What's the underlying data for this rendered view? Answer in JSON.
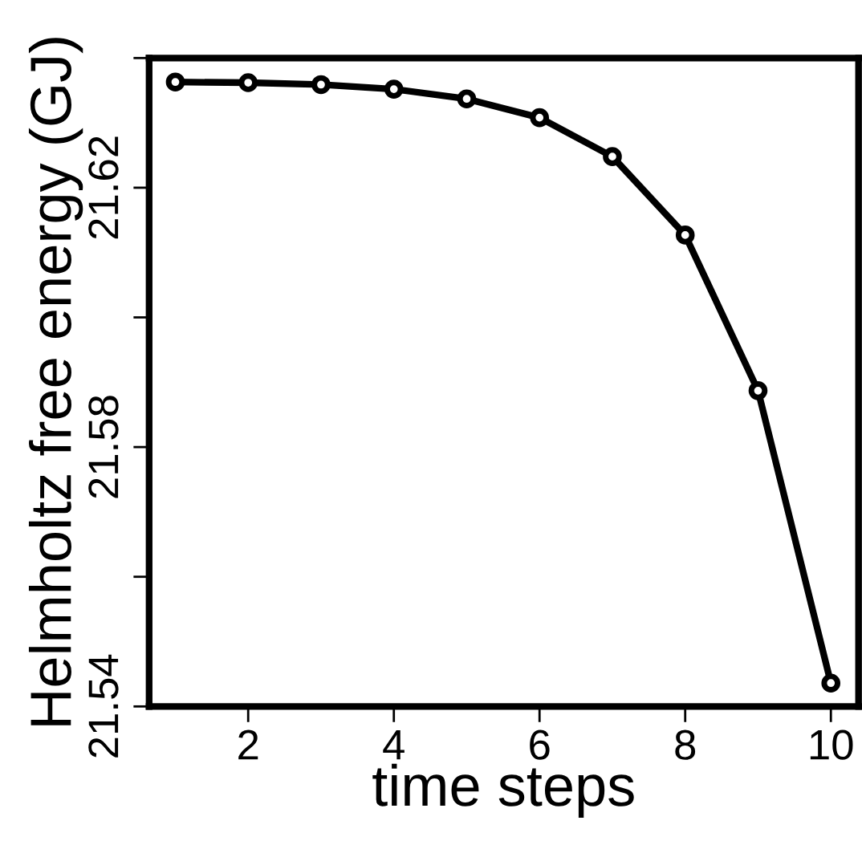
{
  "chart_data": {
    "type": "line",
    "xlabel": "time steps",
    "ylabel": "Helmholtz free energy (GJ)",
    "x": [
      1,
      2,
      3,
      4,
      5,
      6,
      7,
      8,
      9,
      10
    ],
    "series": [
      {
        "color": "#000000",
        "values": [
          21.6363,
          21.6362,
          21.6359,
          21.6352,
          21.6337,
          21.6308,
          21.6248,
          21.6127,
          21.5887,
          21.5436
        ]
      }
    ],
    "xlim": [
      0.64,
      10.38
    ],
    "xticks": [
      2,
      4,
      6,
      8,
      10
    ],
    "ylim": [
      21.54,
      21.64
    ],
    "yticks": [
      21.54,
      {
        "value": 21.56,
        "label": null
      },
      21.58,
      {
        "value": 21.6,
        "label": null
      },
      21.62,
      {
        "value": 21.64,
        "label": null
      }
    ],
    "grid": false,
    "legend": false,
    "marker": "circle",
    "line_style": "solid"
  }
}
